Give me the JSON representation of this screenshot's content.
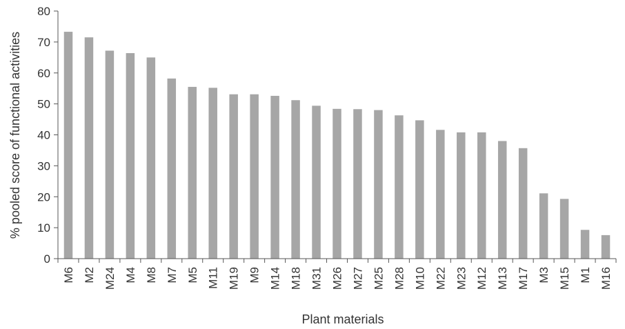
{
  "chart_data": {
    "type": "bar",
    "title": "",
    "xlabel": "Plant materials",
    "ylabel": "% pooled score of functional activities",
    "ylim": [
      0,
      80
    ],
    "yticks": [
      0,
      10,
      20,
      30,
      40,
      50,
      60,
      70,
      80
    ],
    "grid": false,
    "legend": "none",
    "bar_color": "#a6a6a6",
    "categories": [
      "M6",
      "M2",
      "M24",
      "M4",
      "M8",
      "M7",
      "M5",
      "M11",
      "M19",
      "M9",
      "M14",
      "M18",
      "M31",
      "M26",
      "M27",
      "M25",
      "M28",
      "M10",
      "M22",
      "M23",
      "M12",
      "M13",
      "M17",
      "M3",
      "M15",
      "M1",
      "M16"
    ],
    "values": [
      73.3,
      71.5,
      67.2,
      66.4,
      65.0,
      58.2,
      55.5,
      55.2,
      53.1,
      53.1,
      52.6,
      51.2,
      49.4,
      48.4,
      48.3,
      48.0,
      46.3,
      44.7,
      41.6,
      40.8,
      40.8,
      38.0,
      35.7,
      21.1,
      19.3,
      9.3,
      7.6
    ]
  }
}
